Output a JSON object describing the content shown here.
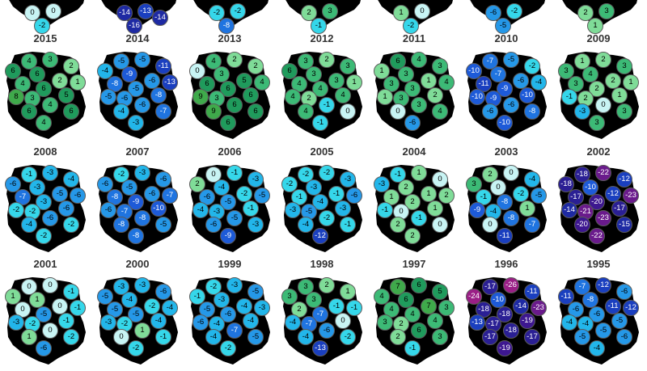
{
  "rows": [
    [
      {
        "year": "",
        "values": [
          0,
          0,
          -2
        ]
      },
      {
        "year": "",
        "values": [
          -14,
          -13,
          -16,
          -14
        ]
      },
      {
        "year": "",
        "values": [
          -2,
          -2,
          -8
        ]
      },
      {
        "year": "",
        "values": [
          2,
          3,
          -1
        ]
      },
      {
        "year": "",
        "values": [
          1,
          0,
          -2
        ]
      },
      {
        "year": "",
        "values": [
          -6,
          -2,
          -5
        ]
      },
      {
        "year": "",
        "values": [
          2,
          3,
          1
        ]
      }
    ],
    [
      {
        "year": "2015",
        "values": [
          4,
          3,
          2,
          6,
          1,
          6,
          4,
          2,
          6,
          5,
          3,
          8,
          4,
          6,
          4,
          6
        ]
      },
      {
        "year": "2014",
        "values": [
          -5,
          -5,
          -11,
          -4,
          -13,
          -9,
          -8,
          -6,
          -5,
          -8,
          -6,
          -5,
          -6,
          -4,
          -3,
          -7
        ]
      },
      {
        "year": "2013",
        "values": [
          4,
          2,
          2,
          0,
          4,
          3,
          6,
          5,
          6,
          6,
          3,
          9,
          6,
          9,
          6,
          6
        ]
      },
      {
        "year": "2012",
        "values": [
          3,
          2,
          3,
          6,
          1,
          3,
          4,
          3,
          4,
          4,
          2,
          4,
          -1,
          4,
          -1,
          0
        ]
      },
      {
        "year": "2011",
        "values": [
          6,
          4,
          3,
          1,
          4,
          3,
          3,
          1,
          3,
          2,
          3,
          1,
          3,
          0,
          -6,
          4
        ]
      },
      {
        "year": "2010",
        "values": [
          -7,
          -5,
          -2,
          -10,
          -4,
          -7,
          -11,
          -6,
          -9,
          -10,
          -9,
          -10,
          -6,
          -6,
          -10,
          -8
        ]
      },
      {
        "year": "2009",
        "values": [
          1,
          2,
          3,
          3,
          1,
          4,
          3,
          2,
          2,
          1,
          2,
          -1,
          0,
          -3,
          3,
          3
        ]
      }
    ],
    [
      {
        "year": "2008",
        "values": [
          -1,
          -3,
          -4,
          -6,
          -6,
          -3,
          -7,
          -5,
          -3,
          -6,
          -2,
          -2,
          -6,
          -4,
          -2,
          -2
        ]
      },
      {
        "year": "2007",
        "values": [
          -2,
          -3,
          -6,
          -6,
          -7,
          -5,
          -8,
          -6,
          -9,
          -10,
          -7,
          -6,
          -8,
          -8,
          -8,
          -5
        ]
      },
      {
        "year": "2006",
        "values": [
          0,
          -1,
          -3,
          2,
          -5,
          -4,
          -6,
          -2,
          -5,
          -1,
          -3,
          -4,
          -5,
          -6,
          -9,
          -3
        ]
      },
      {
        "year": "2005",
        "values": [
          -2,
          -2,
          -3,
          -2,
          -6,
          -3,
          -1,
          -1,
          -4,
          -3,
          -5,
          -3,
          -2,
          -4,
          -12,
          -1
        ]
      },
      {
        "year": "2004",
        "values": [
          -1,
          1,
          0,
          -3,
          2,
          2,
          1,
          1,
          2,
          1,
          0,
          -1,
          -1,
          2,
          2,
          0
        ]
      },
      {
        "year": "2003",
        "values": [
          2,
          0,
          -4,
          3,
          -5,
          0,
          -1,
          -2,
          -8,
          1,
          -4,
          -9,
          -8,
          0,
          -11,
          -7
        ]
      },
      {
        "year": "2002",
        "values": [
          -18,
          -22,
          -12,
          -18,
          -23,
          -10,
          -17,
          -12,
          -20,
          -17,
          -21,
          -14,
          -23,
          -20,
          -22,
          -15
        ]
      }
    ],
    [
      {
        "year": "2001",
        "values": [
          0,
          0,
          -1,
          1,
          -1,
          1,
          0,
          0,
          -5,
          -1,
          -2,
          -3,
          0,
          1,
          -6,
          -2
        ]
      },
      {
        "year": "2000",
        "values": [
          -3,
          -3,
          -6,
          -5,
          -4,
          -4,
          -5,
          -2,
          -5,
          -4,
          -2,
          -3,
          1,
          0,
          -2,
          -1
        ]
      },
      {
        "year": "1999",
        "values": [
          -2,
          -3,
          -5,
          -1,
          -3,
          -3,
          -5,
          -4,
          -6,
          -4,
          -4,
          -6,
          -7,
          -4,
          -2,
          -5
        ]
      },
      {
        "year": "1998",
        "values": [
          3,
          2,
          1,
          3,
          -1,
          3,
          2,
          -1,
          -7,
          0,
          -7,
          -4,
          -6,
          -4,
          -13,
          -2
        ]
      },
      {
        "year": "1997",
        "values": [
          7,
          6,
          5,
          4,
          3,
          6,
          4,
          7,
          4,
          4,
          2,
          3,
          6,
          2,
          -1,
          3
        ]
      },
      {
        "year": "1996",
        "values": [
          -17,
          -26,
          -11,
          -24,
          -23,
          -10,
          -18,
          -14,
          -18,
          -19,
          -17,
          -13,
          -18,
          -17,
          -19,
          -17
        ]
      },
      {
        "year": "1995",
        "values": [
          -7,
          -12,
          -6,
          -11,
          -12,
          -8,
          -6,
          -11,
          -6,
          -5,
          -4,
          -4,
          -5,
          -5,
          -4,
          -6
        ]
      }
    ]
  ]
}
